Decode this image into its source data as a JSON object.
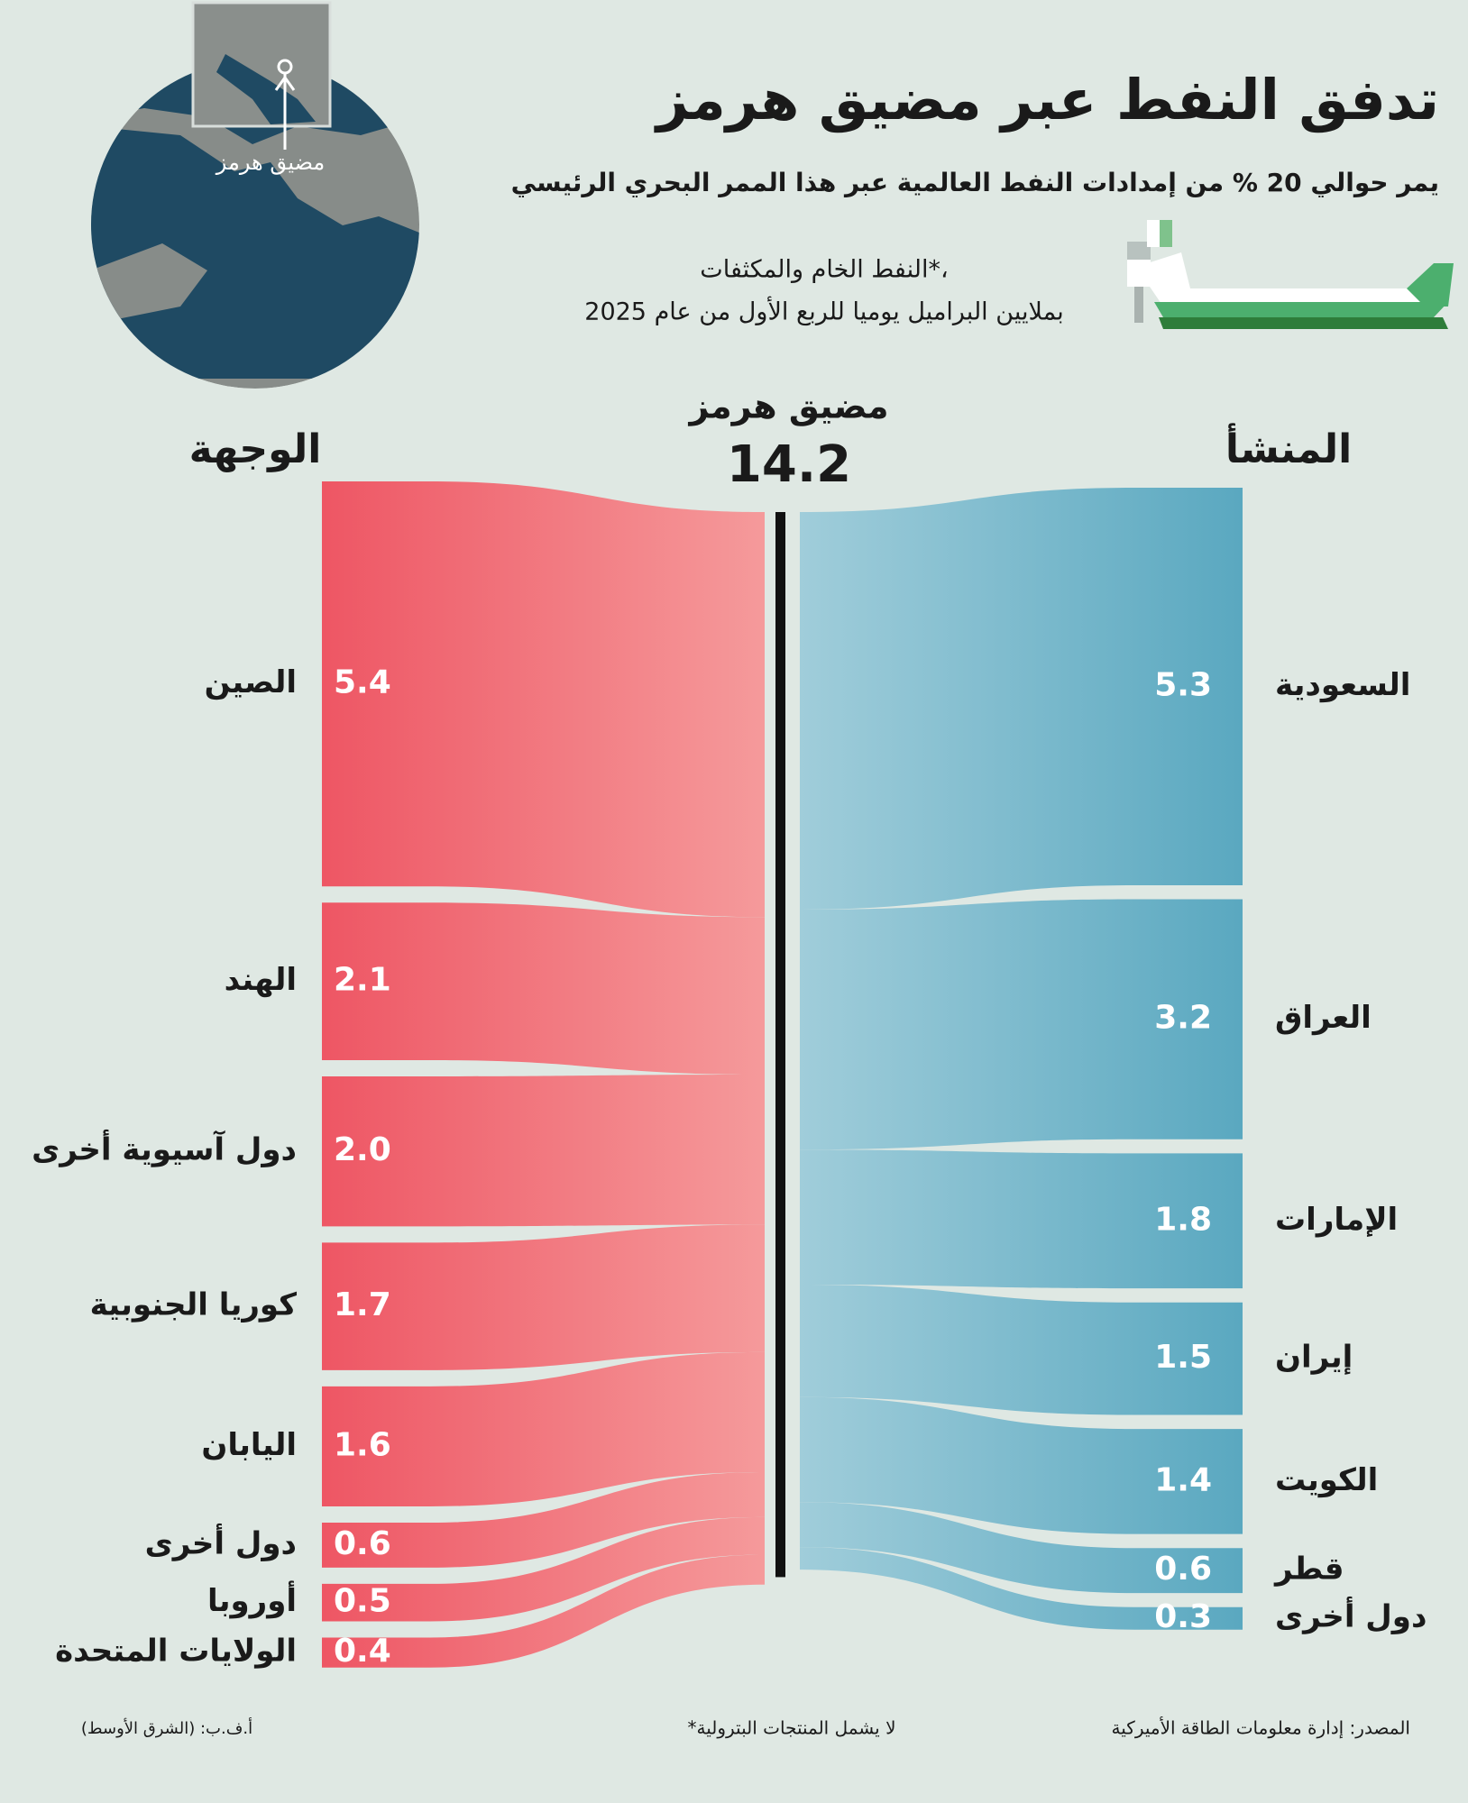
{
  "chart_data": {
    "type": "sankey",
    "title": "تدفق النفط عبر مضيق هرمز",
    "subtitle": "يمر حوالي 20 % من إمدادات النفط العالمية عبر هذا الممر البحري الرئيسي",
    "unit_note": [
      "النفط الخام والمكثفات*،",
      "بملايين البراميل يوميا للربع الأول من عام 2025"
    ],
    "map_label": "مضيق هرمز",
    "center_label": "مضيق هرمز",
    "total": 14.2,
    "origin_title": "المنشأ",
    "destination_title": "الوجهة",
    "sources": {
      "categories": [
        "السعودية",
        "العراق",
        "الإمارات",
        "إيران",
        "الكويت",
        "قطر",
        "دول أخرى"
      ],
      "values": [
        5.3,
        3.2,
        1.8,
        1.5,
        1.4,
        0.6,
        0.3
      ],
      "color": [
        "#a0cdda",
        "#5aa8c0"
      ]
    },
    "destinations": {
      "categories": [
        "الصين",
        "الهند",
        "دول آسيوية أخرى",
        "كوريا الجنوبية",
        "اليابان",
        "دول أخرى",
        "أوروبا",
        "الولايات المتحدة"
      ],
      "values": [
        5.4,
        2.1,
        2.0,
        1.7,
        1.6,
        0.6,
        0.5,
        0.4
      ],
      "value_labels": [
        "5.4",
        "2.1",
        "2.0",
        "1.7",
        "1.6",
        "0.6",
        "0.5",
        "0.4"
      ],
      "color": [
        "#ee5664",
        "#f59a9b"
      ]
    },
    "source": "المصدر: إدارة معلومات الطاقة الأميركية",
    "footnote": "*لا يشمل المنتجات البترولية",
    "credit": "أ.ف.ب: (الشرق الأوسط)"
  }
}
